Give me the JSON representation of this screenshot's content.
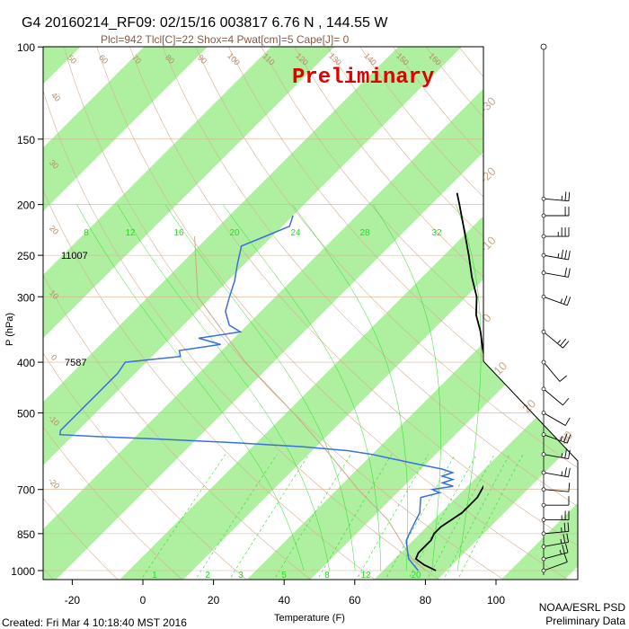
{
  "title": "G4 20160214_RF09: 02/15/16 003817   6.76 N , 144.55 W",
  "subtitle": "Plcl=942 Tlcl[C]=22 Shox=4 Pwat[cm]=5 Cape[J]= 0",
  "watermark": "Preliminary",
  "footer_left": "Created: Fri Mar  4 10:18:40 MST 2016",
  "footer_right_1": "NOAA/ESRL PSD",
  "footer_right_2": "Preliminary Data",
  "colors": {
    "isotherm_band": "#aef0a0",
    "temperature": "#000000",
    "dewpoint": "#3a6fe0",
    "dry_adiabat": "#d4b090",
    "mixing_ratio": "#22dd22",
    "moist_adiabat": "#22dd22",
    "parcel": "#c8a888"
  },
  "chart_data": {
    "type": "skew-t",
    "xlabel": "Temperature (F)",
    "ylabel": "P (hPa)",
    "xlim": [
      -28,
      122
    ],
    "ylim": [
      1000,
      100
    ],
    "x_ticks": [
      "-20",
      "0",
      "20",
      "40",
      "60",
      "80",
      "100"
    ],
    "y_ticks": [
      "100",
      "150",
      "200",
      "250",
      "300",
      "400",
      "500",
      "700",
      "850",
      "1000"
    ],
    "annotations": [
      {
        "text": "11007",
        "p": 250
      },
      {
        "text": "7587",
        "p": 400
      }
    ],
    "mixing_ratio_labels_top": [
      "8",
      "12",
      "16",
      "20",
      "24",
      "28",
      "32"
    ],
    "mixing_ratio_labels_bottom": [
      "1",
      "2",
      "3",
      "5",
      "8",
      "12",
      "20"
    ],
    "dry_adiabat_labels": [
      "50",
      "60",
      "70",
      "80",
      "90",
      "100",
      "110",
      "120",
      "130",
      "140",
      "150",
      "160",
      "40",
      "30",
      "20",
      "10",
      "0",
      "-10",
      "-20"
    ],
    "isotherm_labels": [
      "-30",
      "-20",
      "-10",
      "0",
      "10",
      "20",
      "30"
    ],
    "temperature": {
      "p": [
        1000,
        975,
        950,
        925,
        900,
        875,
        850,
        825,
        800,
        775,
        750,
        725,
        700,
        675,
        650,
        625,
        600,
        575,
        550,
        525,
        500,
        475,
        450,
        425,
        400,
        375,
        350,
        325,
        300,
        275,
        250,
        225,
        200,
        190
      ],
      "t": [
        83,
        78,
        74,
        73,
        73,
        73,
        72,
        72,
        73,
        74,
        74,
        74,
        73,
        72,
        70,
        68,
        66,
        63,
        60,
        58,
        55,
        51,
        47,
        43,
        38,
        33,
        28,
        22,
        17,
        10,
        3,
        -5,
        -14,
        -18
      ]
    },
    "dewpoint": {
      "p": [
        1000,
        975,
        950,
        925,
        900,
        875,
        850,
        825,
        800,
        775,
        750,
        725,
        710,
        700,
        690,
        680,
        670,
        660,
        650,
        640,
        630,
        620,
        610,
        600,
        590,
        580,
        570,
        560,
        555,
        550,
        540,
        530,
        520,
        510,
        500,
        480,
        460,
        440,
        420,
        400,
        390,
        380,
        370,
        360,
        350,
        340,
        320,
        300,
        280,
        260,
        240,
        230,
        220,
        210
      ],
      "t": [
        78,
        75,
        72,
        70,
        68,
        66,
        65,
        64,
        63,
        62,
        60,
        58,
        62,
        59,
        64,
        60,
        62,
        58,
        60,
        56,
        50,
        44,
        38,
        32,
        24,
        10,
        -10,
        -35,
        -50,
        -62,
        -63,
        -63,
        -63,
        -63,
        -63,
        -63,
        -63,
        -63,
        -63,
        -64,
        -50,
        -52,
        -42,
        -50,
        -40,
        -45,
        -50,
        -53,
        -56,
        -60,
        -64,
        -60,
        -56,
        -58
      ]
    },
    "parcel": {
      "p": [
        1000,
        942,
        800,
        700,
        600,
        500,
        400,
        300,
        230
      ],
      "t": [
        80,
        72,
        55,
        38,
        20,
        -2,
        -30,
        -62,
        -80
      ]
    },
    "wind_barbs": [
      {
        "p": 1000,
        "dir": 70,
        "spd": 10
      },
      {
        "p": 950,
        "dir": 75,
        "spd": 15
      },
      {
        "p": 900,
        "dir": 80,
        "spd": 15
      },
      {
        "p": 850,
        "dir": 85,
        "spd": 15
      },
      {
        "p": 800,
        "dir": 90,
        "spd": 15
      },
      {
        "p": 750,
        "dir": 90,
        "spd": 10
      },
      {
        "p": 700,
        "dir": 95,
        "spd": 10
      },
      {
        "p": 650,
        "dir": 100,
        "spd": 15
      },
      {
        "p": 600,
        "dir": 100,
        "spd": 15
      },
      {
        "p": 550,
        "dir": 110,
        "spd": 15
      },
      {
        "p": 500,
        "dir": 120,
        "spd": 10
      },
      {
        "p": 450,
        "dir": 130,
        "spd": 10
      },
      {
        "p": 400,
        "dir": 140,
        "spd": 10
      },
      {
        "p": 350,
        "dir": 130,
        "spd": 15
      },
      {
        "p": 300,
        "dir": 110,
        "spd": 15
      },
      {
        "p": 270,
        "dir": 100,
        "spd": 20
      },
      {
        "p": 250,
        "dir": 100,
        "spd": 25
      },
      {
        "p": 230,
        "dir": 90,
        "spd": 25
      },
      {
        "p": 210,
        "dir": 90,
        "spd": 20
      },
      {
        "p": 195,
        "dir": 95,
        "spd": 15
      }
    ]
  }
}
